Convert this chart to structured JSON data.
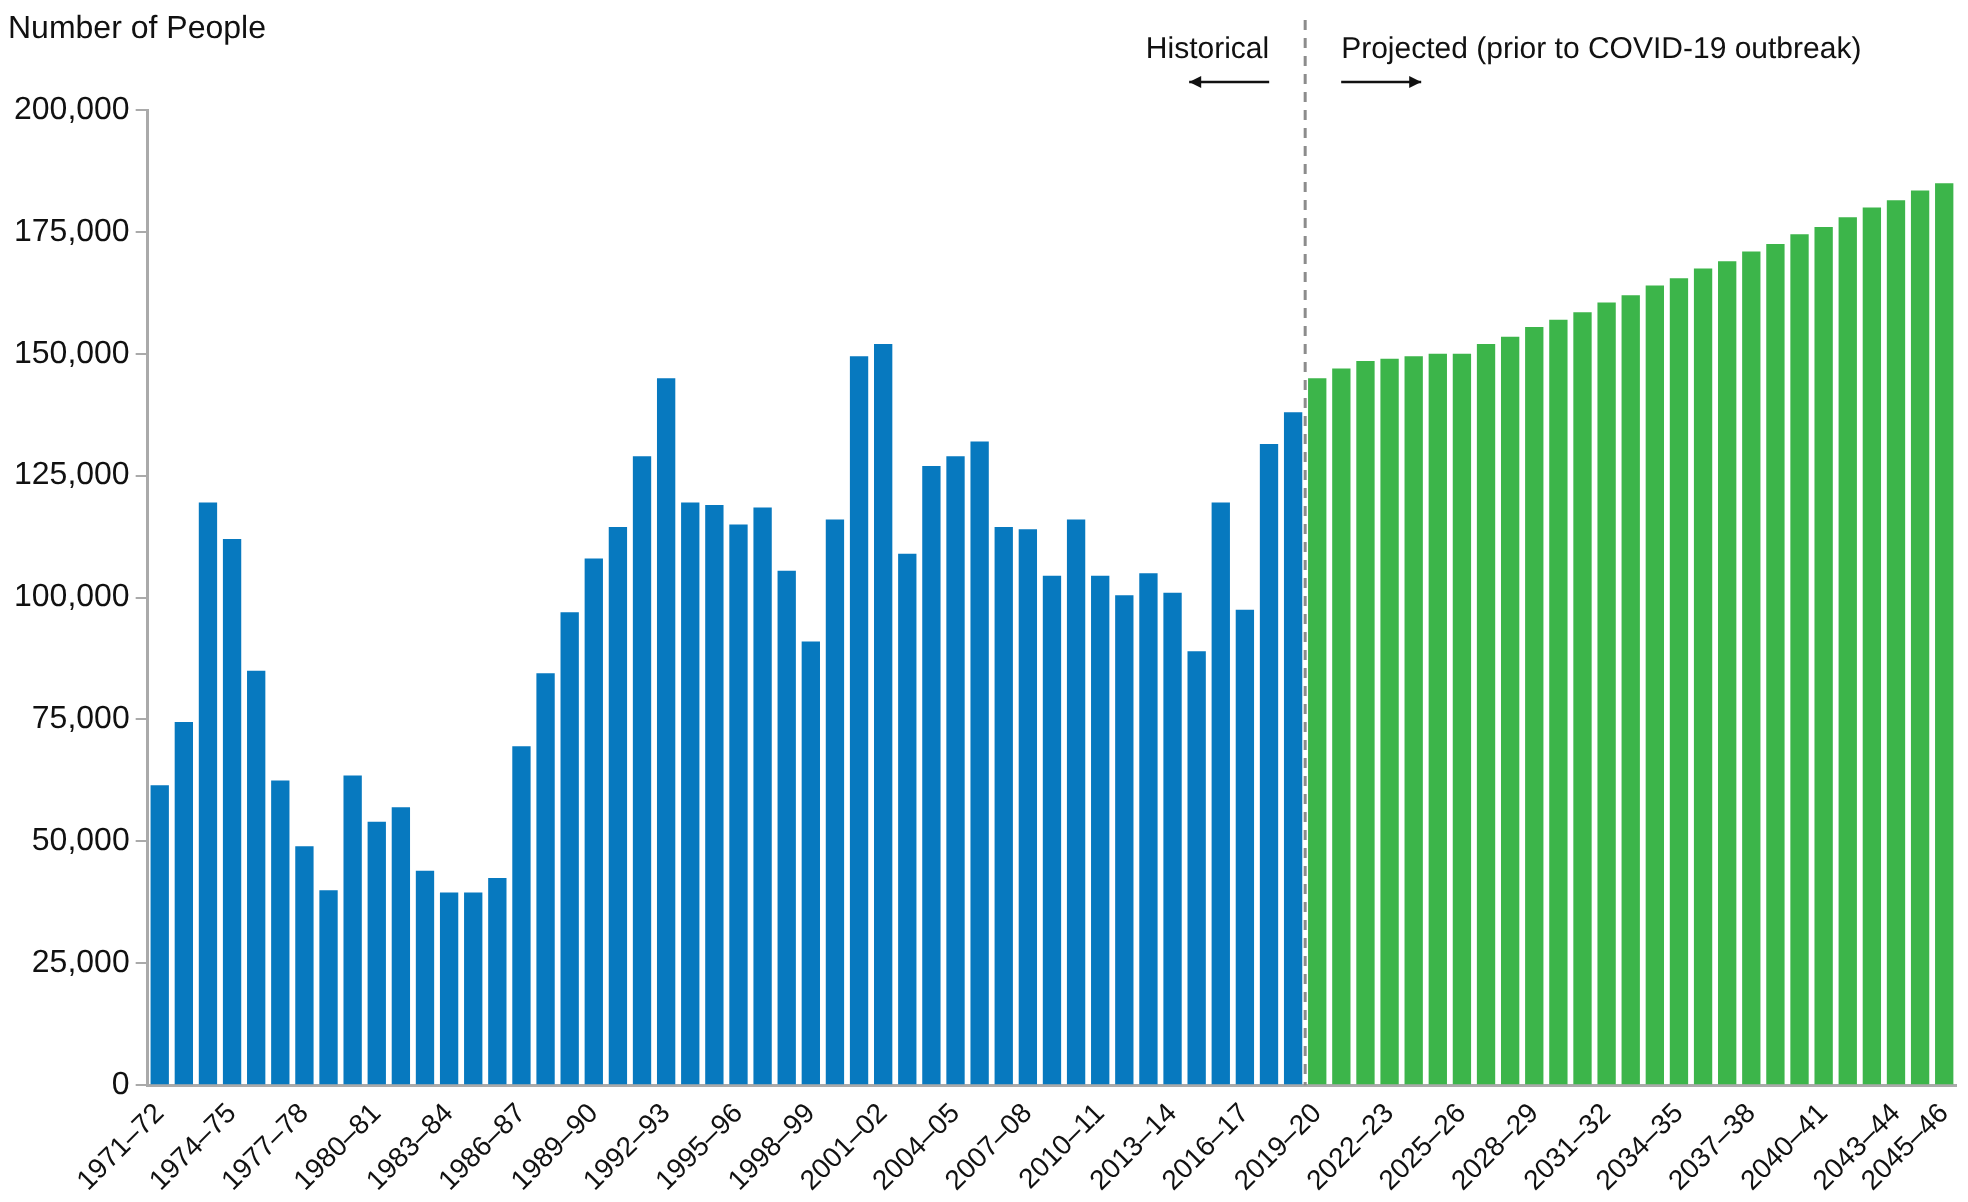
{
  "chart_data": {
    "type": "bar",
    "ylabel": "Number of People",
    "categories": [
      "1971–72",
      null,
      null,
      "1974–75",
      null,
      null,
      "1977–78",
      null,
      null,
      "1980–81",
      null,
      null,
      "1983–84",
      null,
      null,
      "1986–87",
      null,
      null,
      "1989–90",
      null,
      null,
      "1992–93",
      null,
      null,
      "1995–96",
      null,
      null,
      "1998–99",
      null,
      null,
      "2001–02",
      null,
      null,
      "2004–05",
      null,
      null,
      "2007–08",
      null,
      null,
      "2010–11",
      null,
      null,
      "2013–14",
      null,
      null,
      "2016–17",
      null,
      null,
      "2019–20",
      null,
      null,
      "2022–23",
      null,
      null,
      "2025–26",
      null,
      null,
      "2028–29",
      null,
      null,
      "2031–32",
      null,
      null,
      "2034–35",
      null,
      null,
      "2037–38",
      null,
      null,
      "2040–41",
      null,
      null,
      "2043–44",
      null,
      "2045–46"
    ],
    "stacked": true,
    "series": [
      {
        "color": "#0779bf",
        "values": [
          61500,
          74500,
          119500,
          112000,
          85000,
          62500,
          49000,
          40000,
          63500,
          54000,
          57000,
          44000,
          39500,
          39500,
          42500,
          69500,
          84500,
          97000,
          108000,
          114500,
          129000,
          145000,
          119500,
          119000,
          115000,
          118500,
          105500,
          91000,
          116000,
          149500,
          152000,
          109000,
          127000,
          129000,
          132000,
          114500,
          114000,
          104500,
          116000,
          104500,
          100500,
          105000,
          101000,
          89000,
          119500,
          97500,
          131500,
          138000,
          null,
          null,
          null,
          null,
          null,
          null,
          null,
          null,
          null,
          null,
          null,
          null,
          null,
          null,
          null,
          null,
          null,
          null,
          null,
          null,
          null,
          null,
          null,
          null,
          null,
          null,
          null
        ]
      },
      {
        "color": "#3cb54a",
        "values": [
          null,
          null,
          null,
          null,
          null,
          null,
          null,
          null,
          null,
          null,
          null,
          null,
          null,
          null,
          null,
          null,
          null,
          null,
          null,
          null,
          null,
          null,
          null,
          null,
          null,
          null,
          null,
          null,
          null,
          null,
          null,
          null,
          null,
          null,
          null,
          null,
          null,
          null,
          null,
          null,
          null,
          null,
          null,
          null,
          null,
          null,
          null,
          null,
          145000,
          147000,
          148500,
          149000,
          149500,
          150000,
          150000,
          152000,
          153500,
          155500,
          157000,
          158500,
          160500,
          162000,
          164000,
          165500,
          167500,
          169000,
          171000,
          172500,
          174500,
          176000,
          178000,
          180000,
          181500,
          183500,
          185000
        ]
      }
    ],
    "ylim": [
      0,
      200000
    ],
    "yticks": [
      0,
      {
        "value": 25000,
        "label": "25,000"
      },
      {
        "value": 50000,
        "label": "50,000"
      },
      {
        "value": 75000,
        "label": "75,000"
      },
      {
        "value": 100000,
        "label": "100,000"
      },
      {
        "value": 125000,
        "label": "125,000"
      },
      {
        "value": 150000,
        "label": "150,000"
      },
      {
        "value": 175000,
        "label": "175,000"
      },
      {
        "value": 200000,
        "label": "200,000"
      }
    ],
    "annotations": [
      "Historical",
      "Projected (prior to COVID-19 outbreak)"
    ],
    "grid": false,
    "legend": false
  }
}
